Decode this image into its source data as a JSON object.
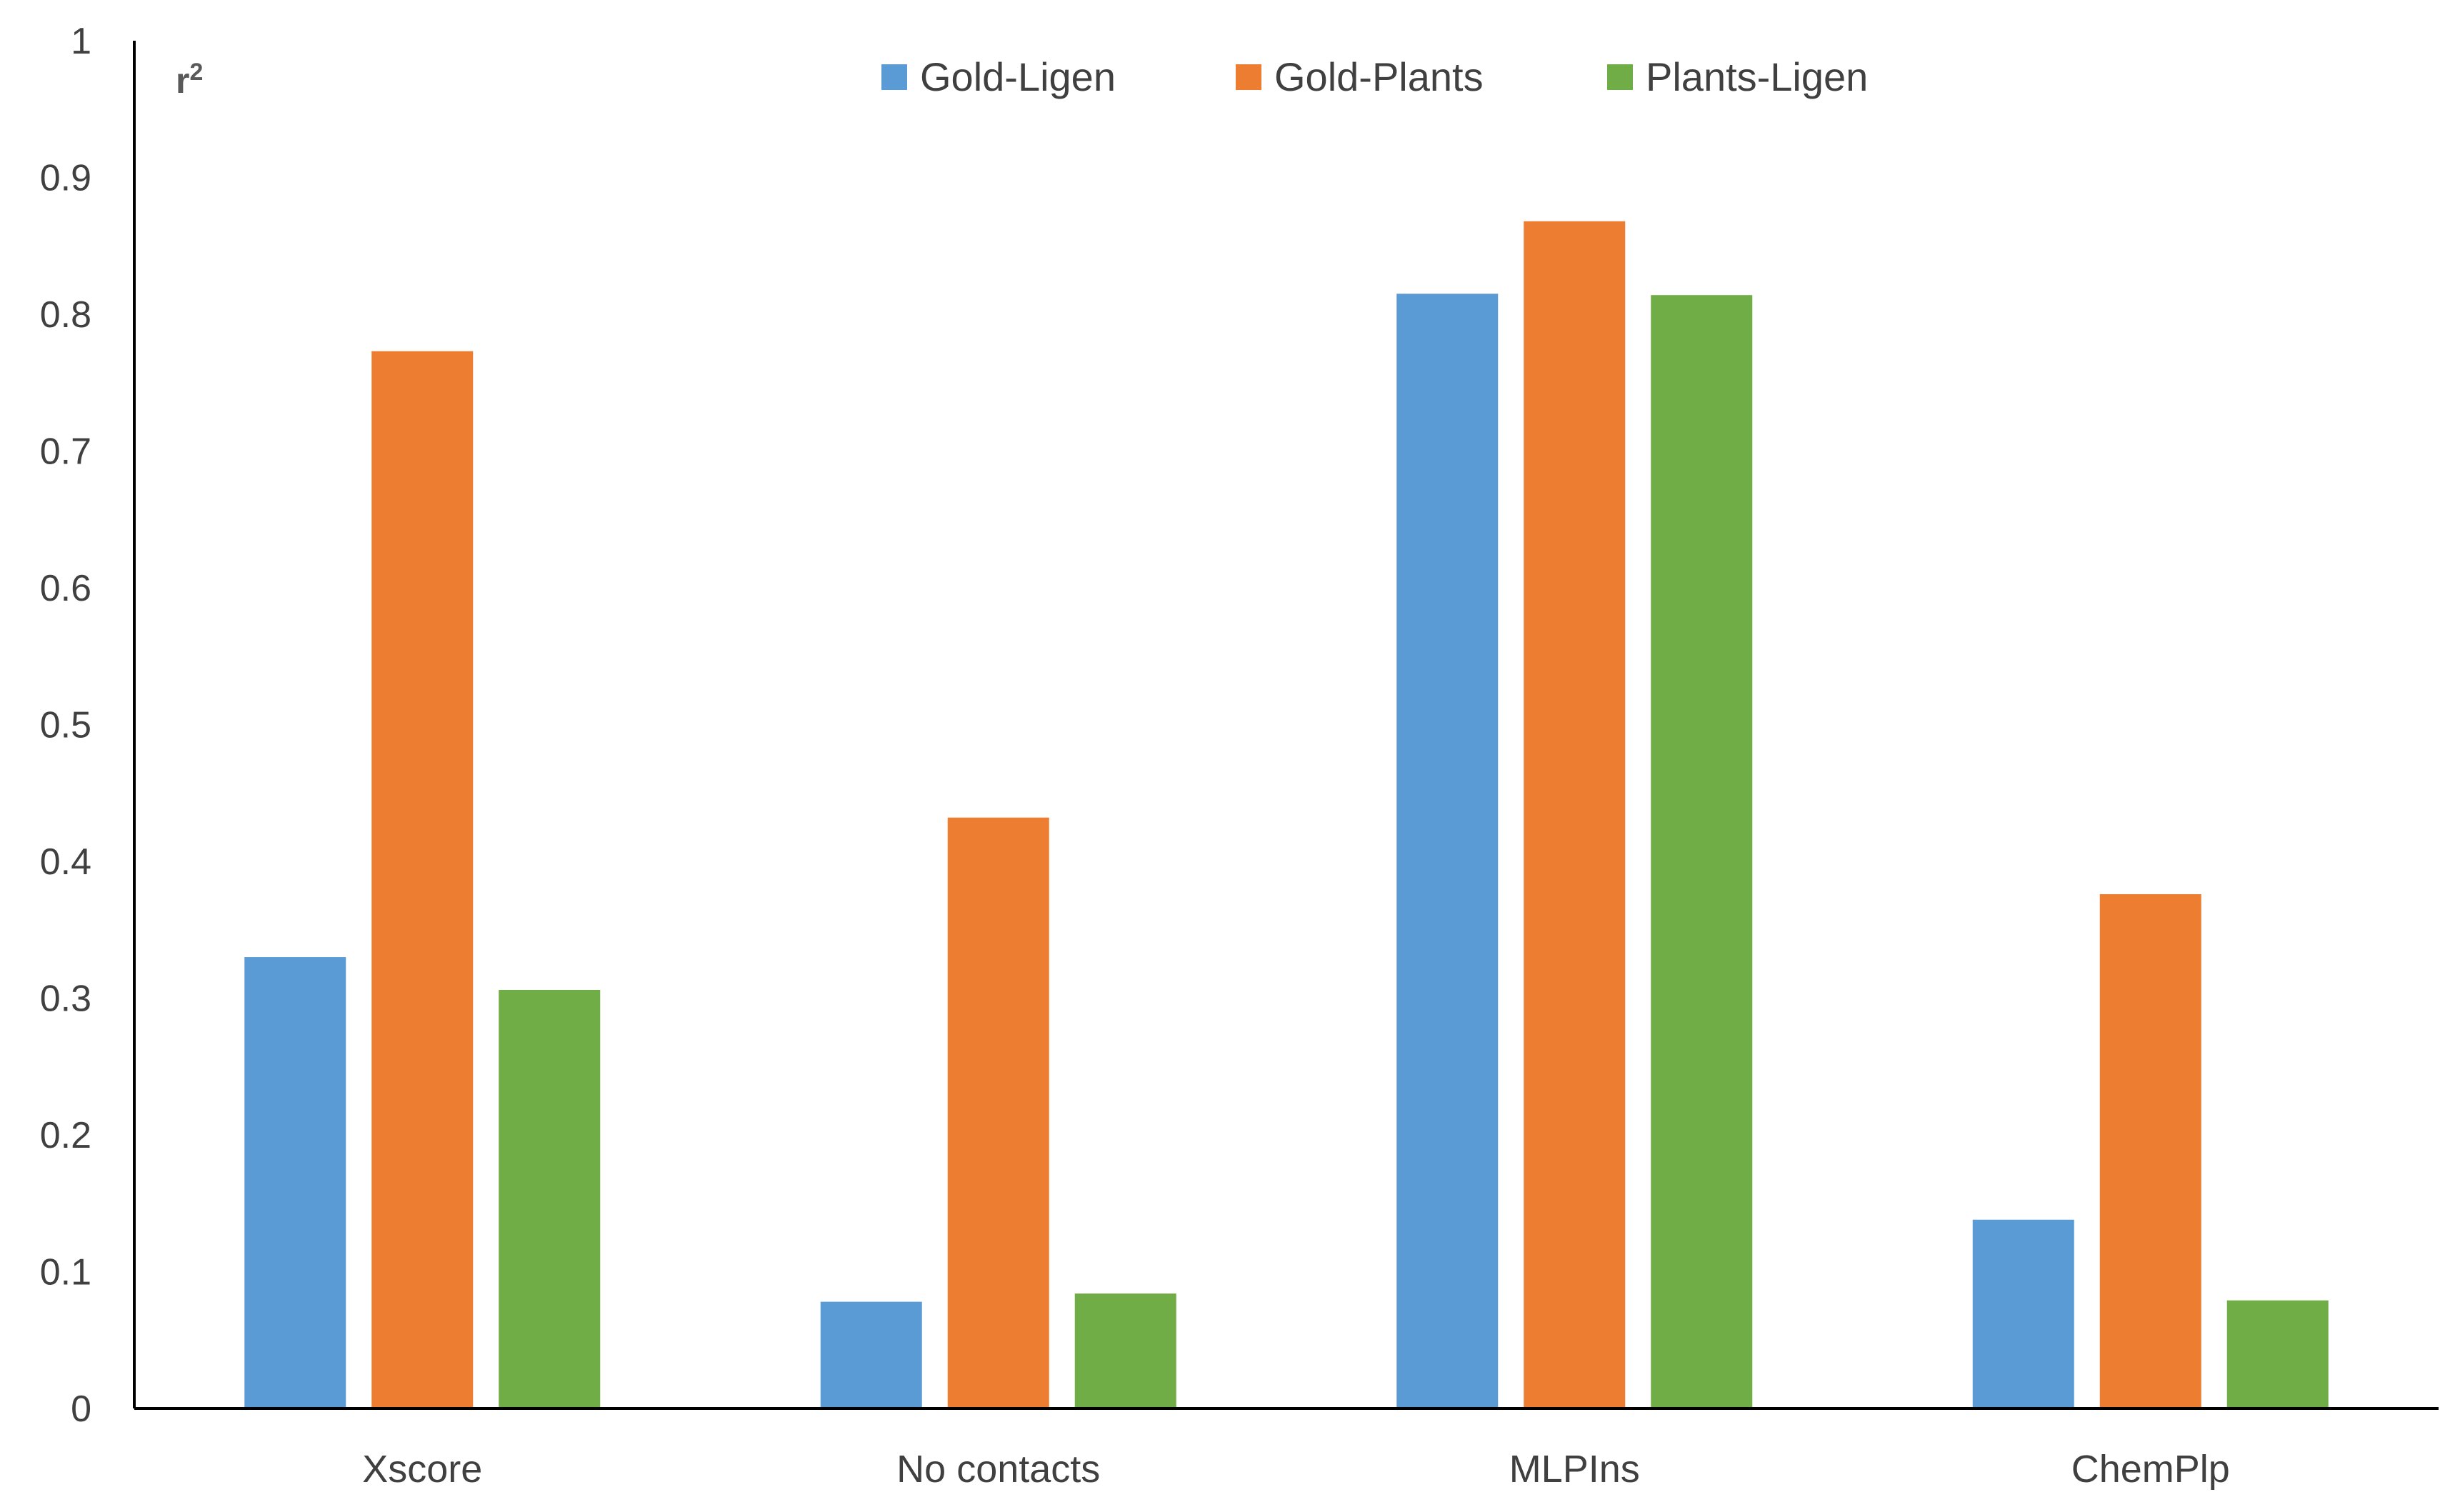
{
  "chart_data": {
    "type": "bar",
    "ylabel": "r",
    "ylabel_superscript": "2",
    "categories": [
      "Xscore",
      "No contacts",
      "MLPIns",
      "ChemPlp"
    ],
    "series": [
      {
        "name": "Gold-Ligen",
        "color": "#5B9BD5",
        "values": [
          0.33,
          0.078,
          0.815,
          0.138
        ]
      },
      {
        "name": "Gold-Plants",
        "color": "#ED7D31",
        "values": [
          0.773,
          0.432,
          0.868,
          0.376
        ]
      },
      {
        "name": "Plants-Ligen",
        "color": "#70AD47",
        "values": [
          0.306,
          0.084,
          0.814,
          0.079
        ]
      }
    ],
    "ylim": [
      0,
      1
    ],
    "yticks": [
      "0",
      "0.1",
      "0.2",
      "0.3",
      "0.4",
      "0.5",
      "0.6",
      "0.7",
      "0.8",
      "0.9",
      "1"
    ],
    "grid": false,
    "legend_position": "top-center"
  }
}
